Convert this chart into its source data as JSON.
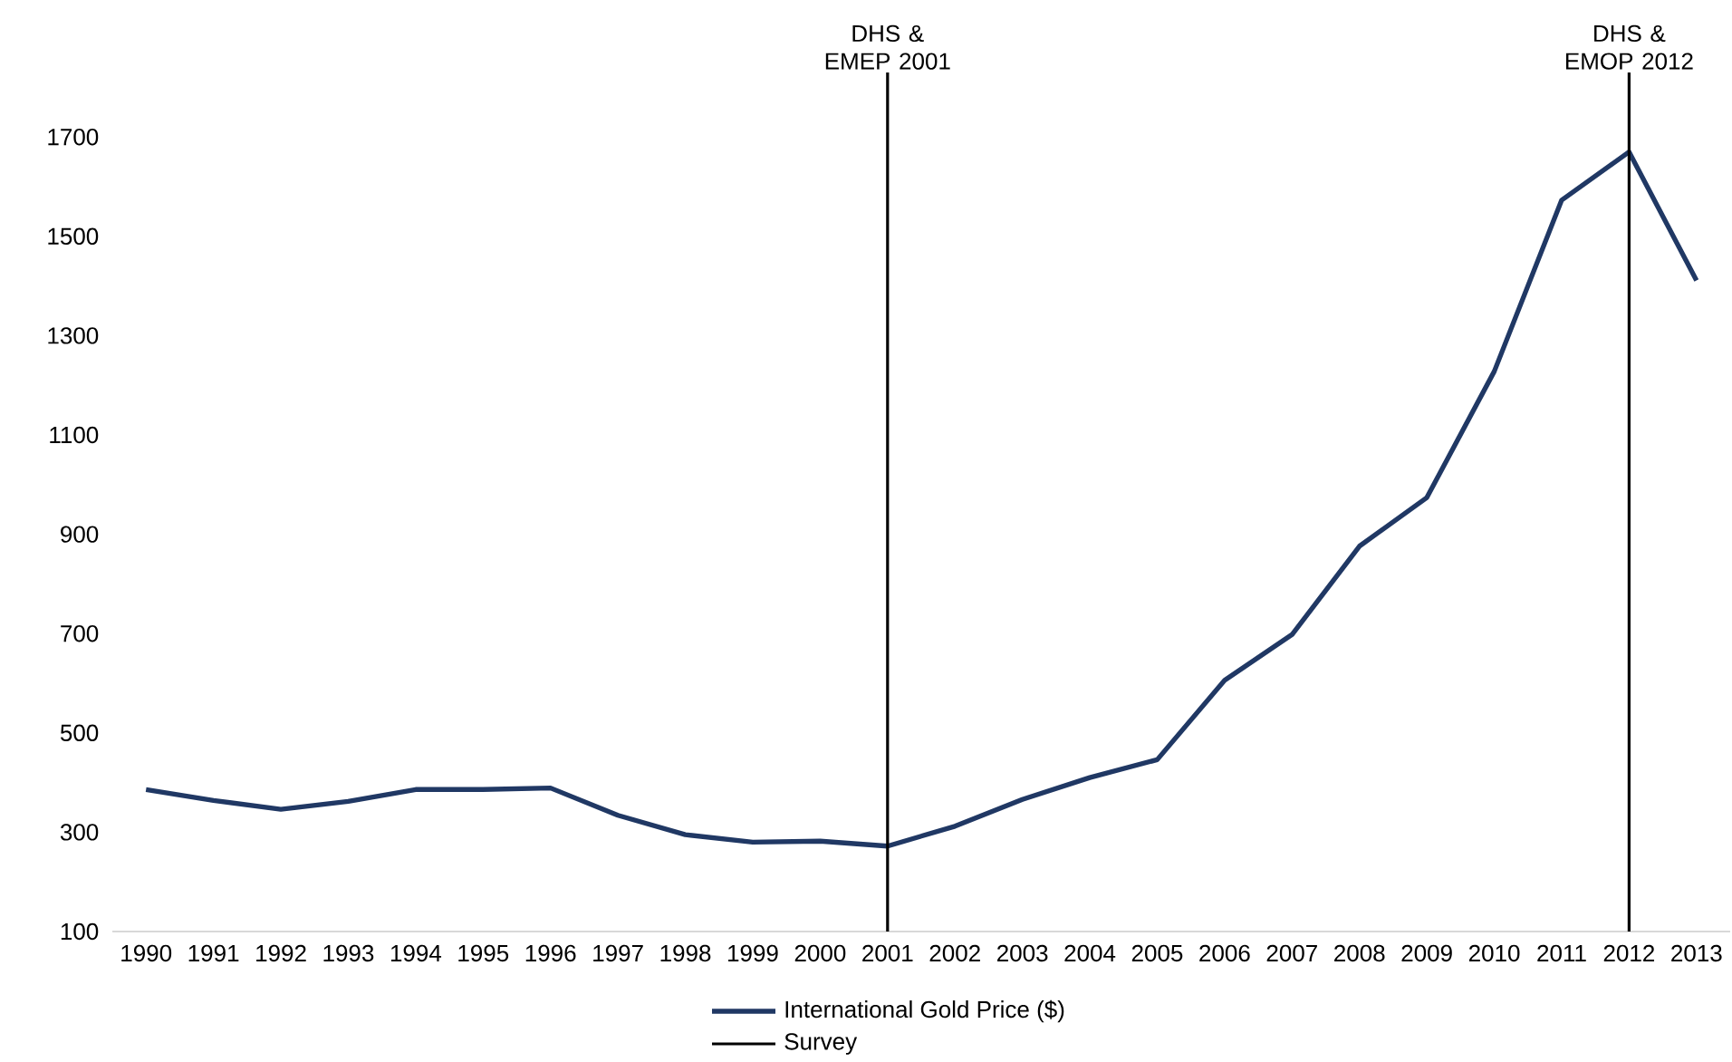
{
  "chart_data": {
    "type": "line",
    "x": [
      1990,
      1991,
      1992,
      1993,
      1994,
      1995,
      1996,
      1997,
      1998,
      1999,
      2000,
      2001,
      2002,
      2003,
      2004,
      2005,
      2006,
      2007,
      2008,
      2009,
      2010,
      2011,
      2012,
      2013
    ],
    "series": [
      {
        "name": "International Gold Price ($)",
        "color": "#203864",
        "values": [
          386,
          364,
          346,
          362,
          386,
          386,
          389,
          334,
          295,
          280,
          282,
          272,
          312,
          366,
          410,
          446,
          606,
          698,
          876,
          974,
          1228,
          1573,
          1670,
          1411
        ]
      }
    ],
    "xlim": [
      1989.5,
      2013.5
    ],
    "xticks": [
      1990,
      1991,
      1992,
      1993,
      1994,
      1995,
      1996,
      1997,
      1998,
      1999,
      2000,
      2001,
      2002,
      2003,
      2004,
      2005,
      2006,
      2007,
      2008,
      2009,
      2010,
      2011,
      2012,
      2013
    ],
    "ylim": [
      100,
      1830
    ],
    "yticks": [
      100,
      300,
      500,
      700,
      900,
      1100,
      1300,
      1500,
      1700
    ],
    "grid": false,
    "legend": "bottom",
    "marker": "none",
    "line_style": "solid",
    "ref_lines": [
      {
        "axis": "x",
        "value": 2001,
        "label": "DHS & EMEP 2001",
        "color": "#000000"
      },
      {
        "axis": "x",
        "value": 2012,
        "label": "DHS & EMOP 2012",
        "color": "#000000"
      }
    ],
    "annotations": [
      "Survey"
    ]
  }
}
